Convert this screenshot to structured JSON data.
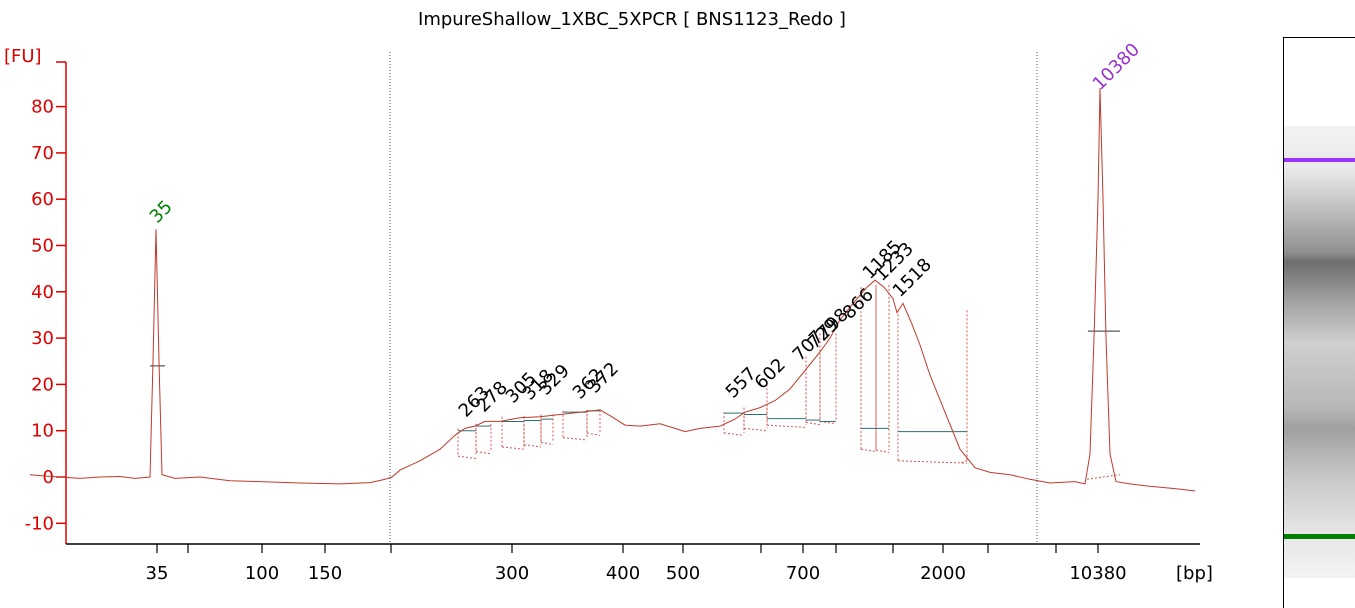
{
  "chart_data": {
    "type": "line",
    "title": "ImpureShallow_1XBC_5XPCR  [ BNS1123_Redo ]",
    "ylabel": "[FU]",
    "xlabel": "[bp]",
    "ylim": [
      -15,
      90
    ],
    "yticks": [
      -10,
      0,
      10,
      20,
      30,
      40,
      50,
      60,
      70,
      80
    ],
    "x_tick_labels": [
      "35",
      "",
      "100",
      "150",
      "",
      "300",
      "400",
      "500",
      "",
      "700",
      "",
      "",
      "2000",
      "",
      "",
      "10380"
    ],
    "marker_peaks": [
      {
        "label": "35",
        "height": 53.5,
        "color": "#008000"
      },
      {
        "label": "10380",
        "height": 84,
        "color": "#9932cc"
      }
    ],
    "peak_labels": [
      "263",
      "278",
      "305",
      "318",
      "329",
      "362",
      "372",
      "557",
      "602",
      "707",
      "729",
      "798",
      "866",
      "1185",
      "1233",
      "1518"
    ],
    "trace_color": "#c0392b",
    "axis_color": "#e00000",
    "trace": [
      [
        30,
        0.5
      ],
      [
        40,
        0.3
      ],
      [
        60,
        0.0
      ],
      [
        80,
        -0.3
      ],
      [
        100,
        0.0
      ],
      [
        120,
        0.1
      ],
      [
        135,
        -0.3
      ],
      [
        150,
        0.0
      ],
      [
        153,
        25
      ],
      [
        156,
        53.5
      ],
      [
        159,
        25
      ],
      [
        162,
        0.5
      ],
      [
        175,
        -0.3
      ],
      [
        200,
        0.0
      ],
      [
        230,
        -0.8
      ],
      [
        260,
        -1.0
      ],
      [
        300,
        -1.3
      ],
      [
        340,
        -1.5
      ],
      [
        370,
        -1.2
      ],
      [
        385,
        -0.5
      ],
      [
        392,
        0.0
      ],
      [
        400,
        1.5
      ],
      [
        420,
        3.5
      ],
      [
        440,
        6.0
      ],
      [
        455,
        9.0
      ],
      [
        465,
        10.5
      ],
      [
        475,
        11.0
      ],
      [
        485,
        12.0
      ],
      [
        500,
        12.0
      ],
      [
        520,
        12.8
      ],
      [
        540,
        13.0
      ],
      [
        560,
        13.5
      ],
      [
        580,
        14.0
      ],
      [
        600,
        14.5
      ],
      [
        612,
        13.0
      ],
      [
        625,
        11.2
      ],
      [
        640,
        11.0
      ],
      [
        660,
        11.5
      ],
      [
        675,
        10.5
      ],
      [
        685,
        9.8
      ],
      [
        700,
        10.5
      ],
      [
        720,
        11.0
      ],
      [
        735,
        12.5
      ],
      [
        745,
        14.0
      ],
      [
        760,
        15.0
      ],
      [
        775,
        16.5
      ],
      [
        790,
        19.0
      ],
      [
        805,
        23.0
      ],
      [
        820,
        27.0
      ],
      [
        830,
        30.0
      ],
      [
        840,
        34.0
      ],
      [
        855,
        38.0
      ],
      [
        867,
        41.0
      ],
      [
        875,
        42.5
      ],
      [
        884,
        41.0
      ],
      [
        893,
        38.5
      ],
      [
        897,
        35.5
      ],
      [
        903,
        37.5
      ],
      [
        912,
        33.0
      ],
      [
        920,
        28.5
      ],
      [
        930,
        22.0
      ],
      [
        945,
        14.0
      ],
      [
        960,
        6.0
      ],
      [
        975,
        2.0
      ],
      [
        990,
        1.0
      ],
      [
        1010,
        0.5
      ],
      [
        1030,
        -0.5
      ],
      [
        1050,
        -1.3
      ],
      [
        1075,
        -1.0
      ],
      [
        1085,
        -1.5
      ],
      [
        1090,
        5.0
      ],
      [
        1094,
        30.0
      ],
      [
        1098,
        60.0
      ],
      [
        1100,
        84.0
      ],
      [
        1103,
        60.0
      ],
      [
        1106,
        30.0
      ],
      [
        1110,
        5.0
      ],
      [
        1116,
        -1.0
      ],
      [
        1130,
        -1.5
      ],
      [
        1150,
        -2.0
      ],
      [
        1175,
        -2.5
      ],
      [
        1195,
        -3.0
      ]
    ]
  },
  "gel": {
    "background": "#f3f3f3",
    "marker_upper_color": "#9933ff",
    "marker_lower_color": "#008000"
  }
}
